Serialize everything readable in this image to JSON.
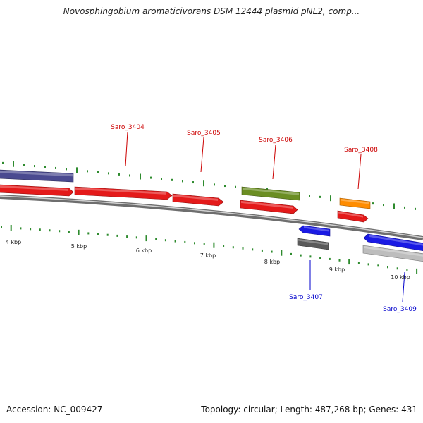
{
  "title": "Novosphingobium aromaticivorans DSM 12444 plasmid pNL2, comp...",
  "footer": {
    "accession": "Accession: NC_009427",
    "summary": "Topology: circular; Length: 487,268 bp; Genes: 431"
  },
  "ruler": {
    "unit": "kbp",
    "labels": [
      "4 kbp",
      "5 kbp",
      "6 kbp",
      "7 kbp",
      "8 kbp",
      "9 kbp",
      "10 kbp"
    ],
    "tick_color": "#2e8b2e"
  },
  "genes": [
    {
      "id": "g-left-blue",
      "label": "",
      "strand": "forward",
      "color": "#4a4a90"
    },
    {
      "id": "g-red-1",
      "label": "",
      "strand": "forward",
      "color": "#e41a1a"
    },
    {
      "id": "saro_3404",
      "label": "Saro_3404",
      "strand": "forward",
      "color": "#e41a1a"
    },
    {
      "id": "saro_3405",
      "label": "Saro_3405",
      "strand": "forward",
      "color": "#e41a1a"
    },
    {
      "id": "saro_3406",
      "label": "Saro_3406",
      "strand": "forward",
      "color": "#6b8e23"
    },
    {
      "id": "saro_3406b",
      "label": "",
      "strand": "forward",
      "color": "#e41a1a"
    },
    {
      "id": "saro_3407",
      "label": "Saro_3407",
      "strand": "reverse",
      "color": "#1a1ae4"
    },
    {
      "id": "saro_3407b",
      "label": "",
      "strand": "reverse",
      "color": "#5a5a5a"
    },
    {
      "id": "saro_3408",
      "label": "Saro_3408",
      "strand": "forward",
      "color": "#ff8c00"
    },
    {
      "id": "saro_3408b",
      "label": "",
      "strand": "forward",
      "color": "#e41a1a"
    },
    {
      "id": "saro_3409",
      "label": "Saro_3409",
      "strand": "reverse",
      "color": "#1a1ae4"
    },
    {
      "id": "saro_3409b",
      "label": "",
      "strand": "reverse",
      "color": "#bdbdbd"
    }
  ],
  "label_colors": {
    "forward": "#cc0000",
    "reverse": "#0000cc"
  }
}
